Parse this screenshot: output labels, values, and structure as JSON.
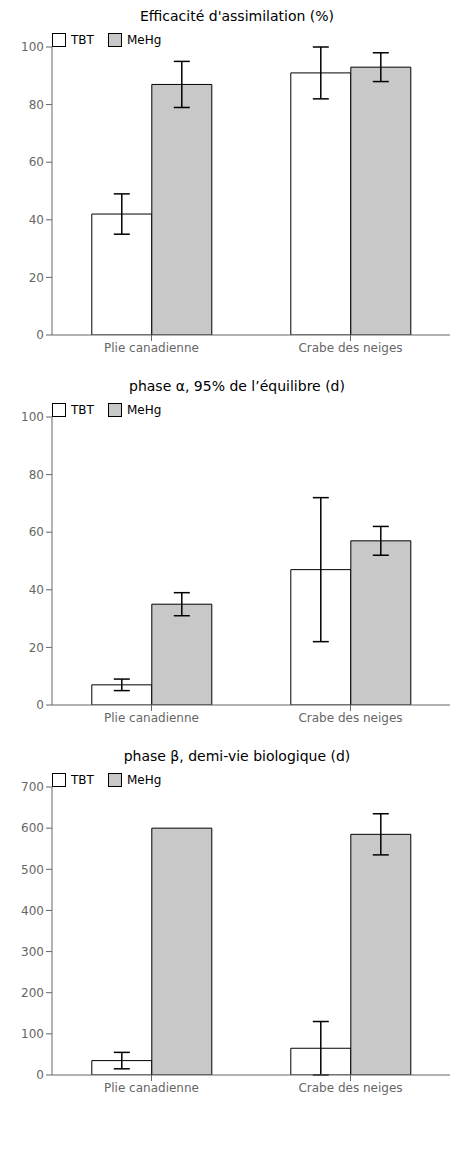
{
  "chart_data": [
    {
      "type": "bar",
      "title": "Efficacité d'assimilation (%)",
      "categories": [
        "Plie canadienne",
        "Crabe des neiges"
      ],
      "series": [
        {
          "name": "TBT",
          "color": "#ffffff",
          "values": [
            42,
            91
          ],
          "errors": [
            7,
            9
          ]
        },
        {
          "name": "MeHg",
          "color": "#c8c8c8",
          "values": [
            87,
            93
          ],
          "errors": [
            8,
            5
          ]
        }
      ],
      "ylim": [
        0,
        100
      ],
      "yticks": [
        0,
        20,
        40,
        60,
        80,
        100
      ],
      "grid": false,
      "legend": "upper left"
    },
    {
      "type": "bar",
      "title": "phase α, 95% de l’équilibre (d)",
      "categories": [
        "Plie canadienne",
        "Crabe des neiges"
      ],
      "series": [
        {
          "name": "TBT",
          "color": "#ffffff",
          "values": [
            7,
            47
          ],
          "errors": [
            2,
            25
          ]
        },
        {
          "name": "MeHg",
          "color": "#c8c8c8",
          "values": [
            35,
            57
          ],
          "errors": [
            4,
            5
          ]
        }
      ],
      "ylim": [
        0,
        100
      ],
      "yticks": [
        0,
        20,
        40,
        60,
        80,
        100
      ],
      "grid": false,
      "legend": "upper left"
    },
    {
      "type": "bar",
      "title": "phase β, demi-vie biologique (d)",
      "categories": [
        "Plie canadienne",
        "Crabe des neiges"
      ],
      "series": [
        {
          "name": "TBT",
          "color": "#ffffff",
          "values": [
            35,
            65
          ],
          "errors": [
            20,
            65
          ]
        },
        {
          "name": "MeHg",
          "color": "#c8c8c8",
          "values": [
            600,
            585
          ],
          "errors": [
            0,
            50
          ]
        }
      ],
      "ylim": [
        0,
        700
      ],
      "yticks": [
        0,
        100,
        200,
        300,
        400,
        500,
        600,
        700
      ],
      "grid": false,
      "legend": "upper left"
    }
  ]
}
